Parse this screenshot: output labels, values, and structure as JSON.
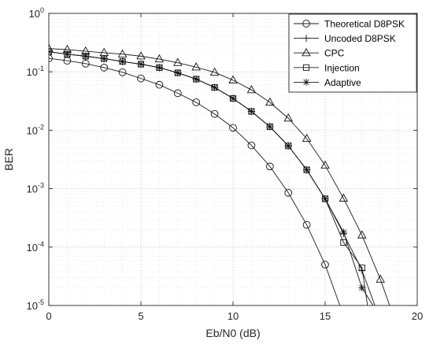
{
  "chart_data": {
    "type": "line",
    "title": "",
    "xlabel": "Eb/N0 (dB)",
    "ylabel": "BER",
    "xlim": [
      0,
      20
    ],
    "ylim": [
      1e-05,
      1
    ],
    "yscale": "log",
    "grid": true,
    "legend_position": "top-right",
    "x_ticks": [
      "0",
      "5",
      "10",
      "15",
      "20"
    ],
    "y_ticks": [
      {
        "base": "10",
        "exp": "0"
      },
      {
        "base": "10",
        "exp": "-1"
      },
      {
        "base": "10",
        "exp": "-2"
      },
      {
        "base": "10",
        "exp": "-3"
      },
      {
        "base": "10",
        "exp": "-4"
      },
      {
        "base": "10",
        "exp": "-5"
      }
    ],
    "series": [
      {
        "name": "Theoretical D8PSK",
        "marker": "circle",
        "x": [
          0,
          1,
          2,
          3,
          4,
          5,
          6,
          7,
          8,
          9,
          10,
          11,
          12,
          13,
          14,
          15,
          15.8
        ],
        "y": [
          0.17,
          0.155,
          0.138,
          0.118,
          0.098,
          0.077,
          0.06,
          0.043,
          0.03,
          0.019,
          0.011,
          0.0055,
          0.0024,
          0.00085,
          0.00024,
          5e-05,
          1e-05
        ]
      },
      {
        "name": "Uncoded D8PSK",
        "marker": "plus",
        "x": [
          0,
          1,
          2,
          3,
          4,
          5,
          6,
          7,
          8,
          9,
          10,
          11,
          12,
          13,
          14,
          15,
          16,
          17,
          17.7
        ],
        "y": [
          0.22,
          0.2,
          0.185,
          0.168,
          0.15,
          0.135,
          0.118,
          0.096,
          0.075,
          0.054,
          0.035,
          0.021,
          0.0115,
          0.0054,
          0.0021,
          0.00067,
          0.00017,
          4e-05,
          1e-05
        ]
      },
      {
        "name": "CPC",
        "marker": "triangle",
        "x": [
          0,
          1,
          2,
          3,
          4,
          5,
          6,
          7,
          8,
          9,
          10,
          11,
          12,
          13,
          14,
          15,
          16,
          17,
          18,
          18.5
        ],
        "y": [
          0.25,
          0.24,
          0.225,
          0.212,
          0.2,
          0.185,
          0.165,
          0.143,
          0.12,
          0.098,
          0.072,
          0.049,
          0.03,
          0.016,
          0.0072,
          0.0025,
          0.00068,
          0.00016,
          2.8e-05,
          1e-05
        ]
      },
      {
        "name": "Injection",
        "marker": "square",
        "x": [
          0,
          1,
          2,
          3,
          4,
          5,
          6,
          7,
          8,
          9,
          10,
          11,
          12,
          13,
          14,
          15,
          16,
          17,
          17.3
        ],
        "y": [
          0.22,
          0.2,
          0.185,
          0.168,
          0.15,
          0.135,
          0.118,
          0.096,
          0.075,
          0.054,
          0.035,
          0.021,
          0.0115,
          0.0054,
          0.0021,
          0.00067,
          0.00012,
          4.4e-05,
          1e-05
        ]
      },
      {
        "name": "Adaptive",
        "marker": "star",
        "x": [
          0,
          1,
          2,
          3,
          4,
          5,
          6,
          7,
          8,
          9,
          10,
          11,
          12,
          13,
          14,
          15,
          16,
          17,
          17.6
        ],
        "y": [
          0.22,
          0.2,
          0.185,
          0.168,
          0.15,
          0.135,
          0.118,
          0.096,
          0.075,
          0.054,
          0.035,
          0.021,
          0.0115,
          0.0054,
          0.0021,
          0.00067,
          0.00018,
          2e-05,
          1e-05
        ]
      }
    ]
  }
}
